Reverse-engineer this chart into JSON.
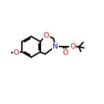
{
  "background_color": "#ffffff",
  "bond_color": "#000000",
  "atom_colors": {
    "O": "#ff0000",
    "N": "#0000ff",
    "C": "#000000"
  },
  "bond_width": 1.5,
  "figsize": [
    1.52,
    1.52
  ],
  "dpi": 100,
  "atoms": {
    "bcx": 0.3,
    "bcy": 0.55,
    "br": 0.1
  }
}
